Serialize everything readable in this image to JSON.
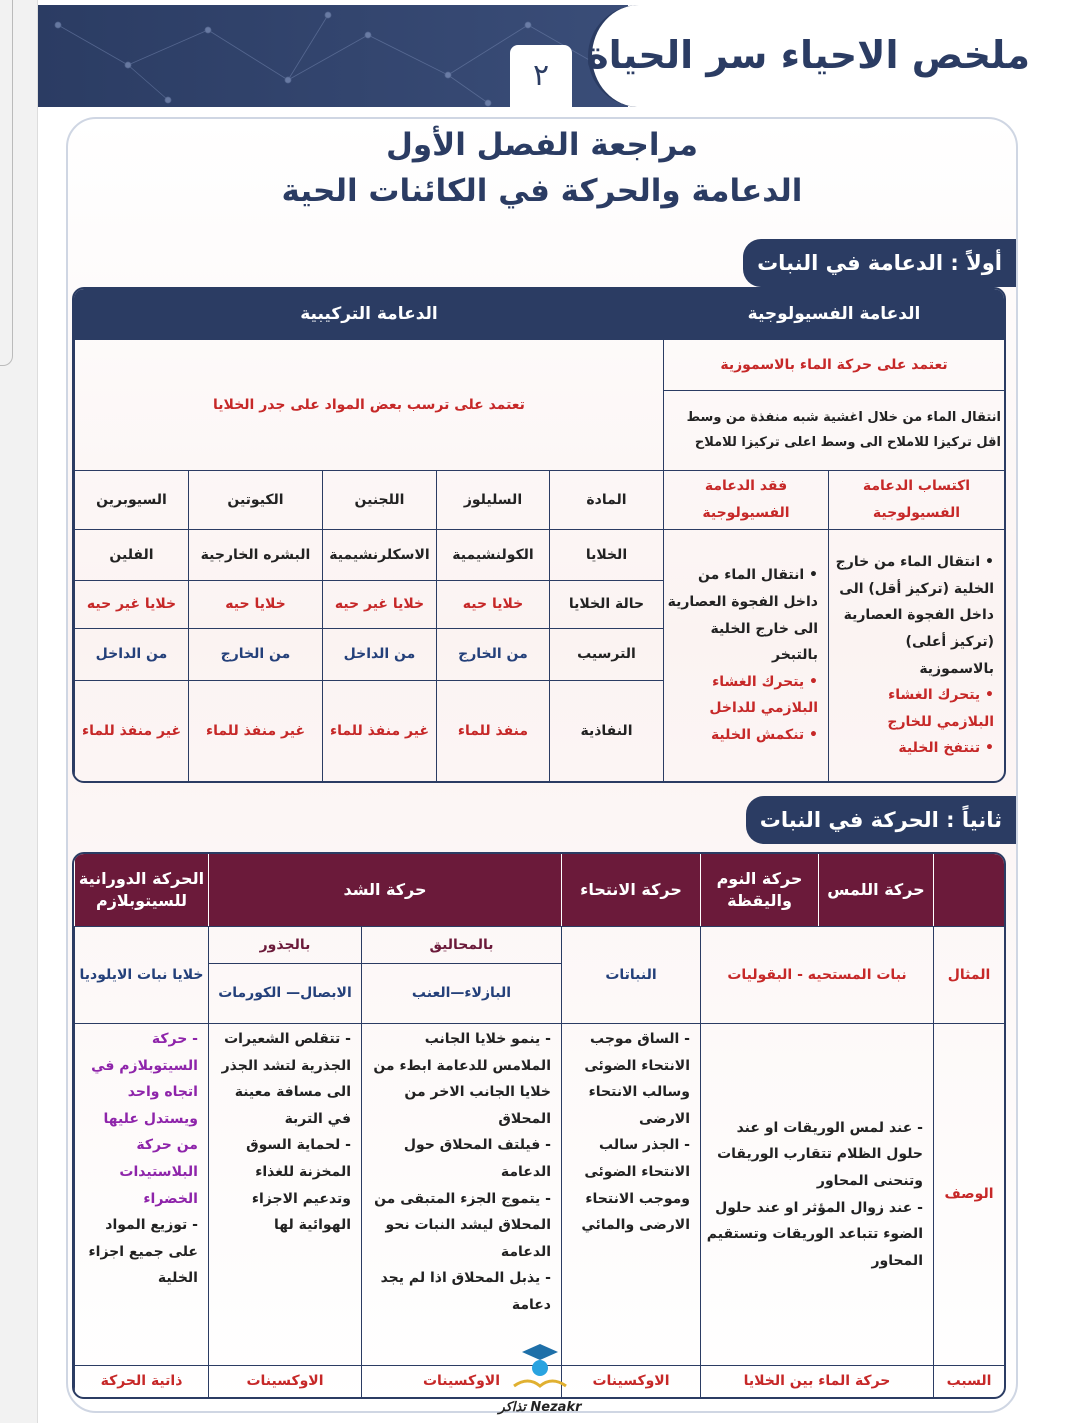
{
  "header": {
    "title": "ملخص الاحياء سر الحياة",
    "page_number": "٢"
  },
  "titles": {
    "line1": "مراجعة الفصل الأول",
    "line2": "الدعامة والحركة في الكائنات الحية"
  },
  "section1": {
    "label": "أولاً : الدعامة في النبات",
    "physio": {
      "header": "الدعامة الفسيولوجية",
      "basis": "تعتمد على حركة الماء بالاسموزية",
      "definition": "انتقال الماء من خلال اغشية شبه منفذة من وسط اقل تركيزا للاملاح الى وسط اعلى تركيزا للاملاح",
      "gain": {
        "header": "اكتساب الدعامة الفسيولوجية",
        "items": [
          "انتقال الماء من خارج الخلية (تركيز أقل) الى داخل الفجوة العصارية (تركيز أعلى) بالاسموزية",
          "يتحرك الغشاء البلازمي للخارج",
          "تنتفخ الخلية"
        ]
      },
      "loss": {
        "header": "فقد الدعامة الفسيولوجية",
        "items": [
          "انتقال الماء من داخل الفجوة العصارية الى خارج الخلية بالتبخر",
          "يتحرك الغشاء البلازمي للداخل",
          "تنكمش الخلية"
        ]
      }
    },
    "structural": {
      "header": "الدعامة التركيبية",
      "basis": "تعتمد على ترسب بعض المواد على جدر الخلايا",
      "columns": [
        "المادة",
        "السليلوز",
        "اللجنين",
        "الكيوتين",
        "السيوبرين"
      ],
      "rows": [
        [
          "الخلايا",
          "الكولنشيمية",
          "الاسكلرنشيمية",
          "البشره الخارجية",
          "الفلين"
        ],
        [
          "حالة الخلايا",
          "خلايا حيه",
          "خلايا غير حيه",
          "خلايا حيه",
          "خلايا غير حيه"
        ],
        [
          "الترسيب",
          "من الخارج",
          "من الداخل",
          "من الخارج",
          "من الداخل"
        ],
        [
          "النفاذية",
          "منفذ للماء",
          "غير منفذ للماء",
          "غير منفذ للماء",
          "غير منفذ للماء"
        ]
      ]
    }
  },
  "section2": {
    "label": "ثانياً : الحركة في النبات",
    "headers": {
      "touch": "حركة اللمس",
      "sleep": "حركة النوم واليقظة",
      "tropism": "حركة الانتحاء",
      "tension": "حركة الشد",
      "cyclosis": "الحركة الدورانية للسيتوبلازم"
    },
    "row_labels": {
      "example": "المثال",
      "description": "الوصف",
      "cause": "السبب"
    },
    "sub": {
      "tendrils": "بالمحاليق",
      "roots": "بالجذور"
    },
    "examples": {
      "touch_sleep": "نبات المستحيه - البقوليات",
      "tropism": "النباتات",
      "tendrils": "البازلاء—العنب",
      "roots": "الابصال— الكورمات",
      "cyclosis": "خلايا نبات الايلوديا"
    },
    "descriptions": {
      "touch_sleep": [
        "عند لمس الوريقات او عند حلول الظلام تتقارب الوريقات وتنحنى المحاور",
        "عند زوال المؤثر او عند حلول الضوء تتباعد الوريقات وتستقيم المحاور"
      ],
      "tropism": [
        "الساق موجب الانتحاء الضوئى وسالب الانتحاء الارضى",
        "الجذر سالب الانتحاء الضوئى وموجب الانتحاء الارضى والمائي"
      ],
      "tendrils": [
        "ينمو خلايا الجانب الملامس للدعامة ابطء من خلايا الجانب الاخر من المحلاق",
        "فيلتف المحلاق حول الدعامة",
        "يتموج الجزء المتبقى من المحلاق ليشد النبات نحو الدعامة",
        "يذبل المحلاق اذا لم يجد دعامة"
      ],
      "roots": [
        "تتقلص الشعيرات الجذرية لتشد الجذر الى مسافة معينة في التربة",
        "لحماية السوق المخزنة للغذاء وتدعيم الاجزاء الهوائية لها"
      ],
      "cyclosis": [
        "حركة السيتوبلازم في اتجاه واحد ويستدل عليها من حركة البلاستيدات الخضراء",
        "توزيع المواد على جميع اجزاء الخلية"
      ]
    },
    "causes": {
      "touch_sleep": "حركة الماء بين الخلايا",
      "tropism": "الاوكسينات",
      "tendrils": "الاوكسينات",
      "roots": "الاوكسينات",
      "cyclosis": "ذاتية الحركة"
    }
  },
  "watermark": "Nezakr تذاكر",
  "colors": {
    "navy": "#2b3c63",
    "maroon": "#6b1a3a",
    "red": "#c62828"
  }
}
